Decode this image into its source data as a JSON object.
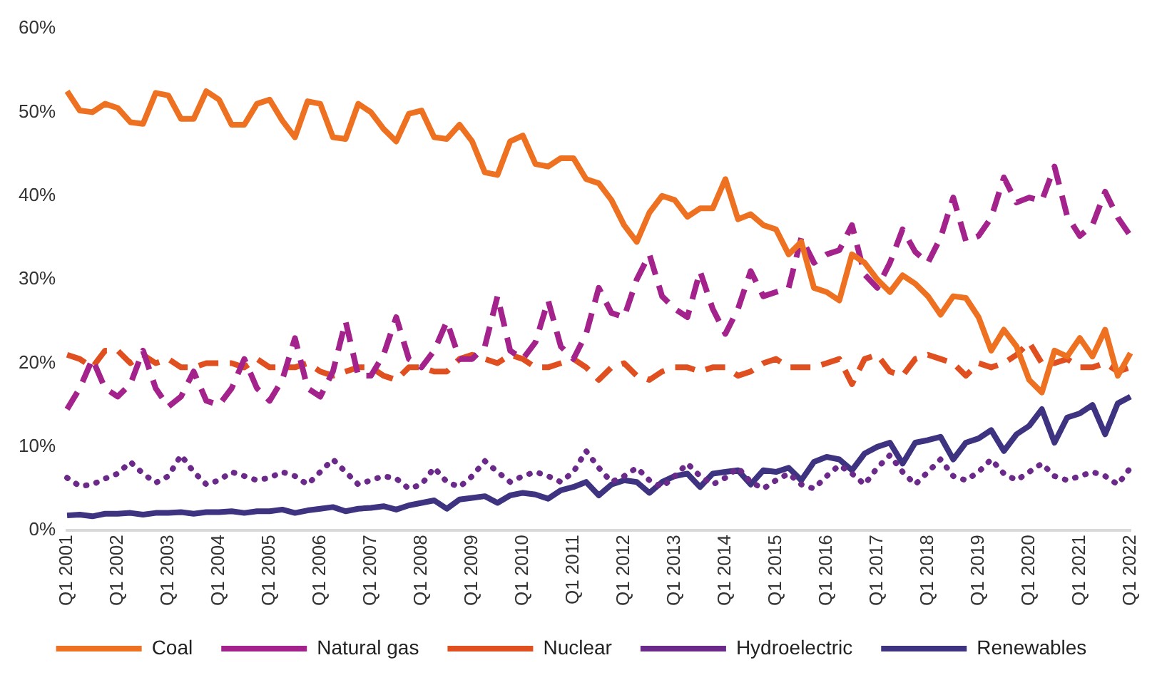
{
  "chart_data": {
    "type": "line",
    "categories": [
      "Q1 2001",
      null,
      null,
      null,
      "Q1 2002",
      null,
      null,
      null,
      "Q1 2003",
      null,
      null,
      null,
      "Q1 2004",
      null,
      null,
      null,
      "Q1 2005",
      null,
      null,
      null,
      "Q1 2006",
      null,
      null,
      null,
      "Q1 2007",
      null,
      null,
      null,
      "Q1 2008",
      null,
      null,
      null,
      "Q1 2009",
      null,
      null,
      null,
      "Q1 2010",
      null,
      null,
      null,
      "Q1 2011",
      null,
      null,
      null,
      "Q1 2012",
      null,
      null,
      null,
      "Q1 2013",
      null,
      null,
      null,
      "Q1 2014",
      null,
      null,
      null,
      "Q1 2015",
      null,
      null,
      null,
      "Q1 2016",
      null,
      null,
      null,
      "Q1 2017",
      null,
      null,
      null,
      "Q1 2018",
      null,
      null,
      null,
      "Q1 2019",
      null,
      null,
      null,
      "Q1 2020",
      null,
      null,
      null,
      "Q1 2021",
      null,
      null,
      null,
      "Q1 2022"
    ],
    "series": [
      {
        "name": "Coal",
        "color": "#ee7122",
        "line_style": "solid",
        "values": [
          52.5,
          50.2,
          50,
          51,
          50.5,
          48.8,
          48.6,
          52.3,
          52,
          49.2,
          49.2,
          52.5,
          51.5,
          48.5,
          48.5,
          51,
          51.5,
          49,
          47,
          51.3,
          51,
          47,
          46.8,
          51,
          50,
          48,
          46.5,
          49.8,
          50.2,
          47,
          46.8,
          48.5,
          46.5,
          42.8,
          42.5,
          46.5,
          47.2,
          43.8,
          43.5,
          44.5,
          44.5,
          42,
          41.5,
          39.5,
          36.5,
          34.5,
          38,
          40,
          39.5,
          37.5,
          38.5,
          38.5,
          42,
          37.2,
          37.8,
          36.5,
          36,
          33,
          34.5,
          29,
          28.5,
          27.5,
          33,
          32,
          30,
          28.5,
          30.5,
          29.5,
          28,
          25.8,
          28,
          27.8,
          25.5,
          21.5,
          24,
          22,
          18,
          16.5,
          21.5,
          20.8,
          23,
          20.8,
          24,
          18.5,
          21.2
        ]
      },
      {
        "name": "Natural gas",
        "color": "#a3228b",
        "line_style": "dashed",
        "values": [
          14.5,
          17,
          20.5,
          17,
          16,
          17.5,
          21.5,
          17,
          14.8,
          16,
          19,
          15.5,
          15,
          17,
          20.5,
          17,
          15.5,
          18,
          23,
          17,
          16,
          19,
          25,
          18.5,
          18.5,
          21,
          25.5,
          20.5,
          19.5,
          21.5,
          25,
          20.5,
          20.5,
          22,
          28,
          21.5,
          20.5,
          22.5,
          27.5,
          22,
          20.5,
          23.5,
          29,
          26,
          25.5,
          30,
          33,
          28,
          26.5,
          25.5,
          31,
          26.5,
          23.5,
          26.5,
          31,
          28,
          28.5,
          29,
          35,
          32,
          33,
          33.5,
          36.5,
          30.6,
          29,
          32,
          36,
          33.3,
          32,
          35,
          39.8,
          34.6,
          35.2,
          37.4,
          42.2,
          39.2,
          39.8,
          39.4,
          43.5,
          37.6,
          35.2,
          36.5,
          40.5,
          37.4,
          35.2
        ]
      },
      {
        "name": "Nuclear",
        "color": "#e04f20",
        "line_style": "dashed",
        "values": [
          21,
          20.5,
          19.5,
          21.5,
          21.5,
          20,
          21,
          20,
          20.5,
          19.5,
          19.5,
          20,
          20,
          20,
          19.5,
          20.5,
          19.5,
          19.5,
          19.5,
          20,
          19,
          18.5,
          19,
          19.5,
          19.5,
          18.5,
          18,
          19.5,
          19.5,
          19,
          19,
          20.5,
          21,
          20.5,
          20,
          21,
          20.5,
          19.5,
          19.5,
          20,
          20.5,
          19.5,
          18,
          19.5,
          20,
          18.5,
          18,
          19,
          19.5,
          19.5,
          19,
          19.5,
          19.5,
          18.5,
          19,
          20,
          20.5,
          19.5,
          19.5,
          19.5,
          20,
          20.5,
          17.5,
          20.5,
          21,
          19,
          18.5,
          20.5,
          21,
          20.5,
          20,
          18.5,
          20,
          19.5,
          20,
          21,
          22.5,
          20,
          20,
          20.5,
          19.5,
          19.5,
          20,
          19,
          19.5
        ]
      },
      {
        "name": "Hydroelectric",
        "color": "#6b2a8a",
        "line_style": "dotted",
        "values": [
          6.3,
          5.3,
          5.5,
          6.2,
          6.8,
          8.2,
          6.8,
          5.7,
          6.5,
          9,
          7,
          5.5,
          6,
          7,
          6.5,
          6,
          6.3,
          7,
          6.5,
          5.5,
          7,
          8.5,
          7,
          5.5,
          6,
          6.5,
          6.2,
          5,
          5.5,
          7.5,
          5.8,
          5.2,
          6.5,
          8.3,
          7,
          5.8,
          6.5,
          7,
          6.5,
          5.8,
          7,
          9.5,
          7.5,
          5.8,
          6.5,
          7.5,
          6,
          5.2,
          6.5,
          8,
          6.5,
          5.5,
          6.3,
          7.5,
          5.8,
          5,
          6,
          6.8,
          5.5,
          5,
          6.5,
          7.8,
          6.8,
          5.5,
          7.5,
          9,
          7,
          5.5,
          7,
          8.5,
          6.5,
          6,
          7,
          8.5,
          6.8,
          6,
          7,
          8,
          6.5,
          6,
          6.5,
          7,
          6.5,
          5.5,
          7.5
        ]
      },
      {
        "name": "Renewables",
        "color": "#3d3380",
        "line_style": "solid",
        "values": [
          1.8,
          1.9,
          1.7,
          2,
          2,
          2.1,
          1.9,
          2.1,
          2.1,
          2.2,
          2,
          2.2,
          2.2,
          2.3,
          2.1,
          2.3,
          2.3,
          2.5,
          2.1,
          2.4,
          2.6,
          2.8,
          2.3,
          2.6,
          2.7,
          2.9,
          2.5,
          3,
          3.3,
          3.6,
          2.6,
          3.7,
          3.9,
          4.1,
          3.3,
          4.2,
          4.5,
          4.3,
          3.8,
          4.8,
          5.2,
          5.8,
          4.2,
          5.5,
          6,
          5.8,
          4.5,
          5.8,
          6.5,
          6.8,
          5.2,
          6.8,
          7,
          7.2,
          5.5,
          7.2,
          7,
          7.5,
          6,
          8.2,
          8.8,
          8.5,
          7.2,
          9.2,
          10,
          10.5,
          8,
          10.5,
          10.8,
          11.2,
          8.5,
          10.5,
          11,
          12,
          9.5,
          11.5,
          12.5,
          14.5,
          10.5,
          13.5,
          14,
          15,
          11.5,
          15.2,
          16
        ]
      }
    ],
    "ylim": [
      0,
      60
    ],
    "yticks": [
      {
        "value": 0,
        "label": "0%"
      },
      {
        "value": 10,
        "label": "10%"
      },
      {
        "value": 20,
        "label": "20%"
      },
      {
        "value": 30,
        "label": "30%"
      },
      {
        "value": 40,
        "label": "40%"
      },
      {
        "value": 50,
        "label": "50%"
      },
      {
        "value": 60,
        "label": "60%"
      }
    ],
    "grid": false,
    "legend": "bottom",
    "marker": "none"
  }
}
